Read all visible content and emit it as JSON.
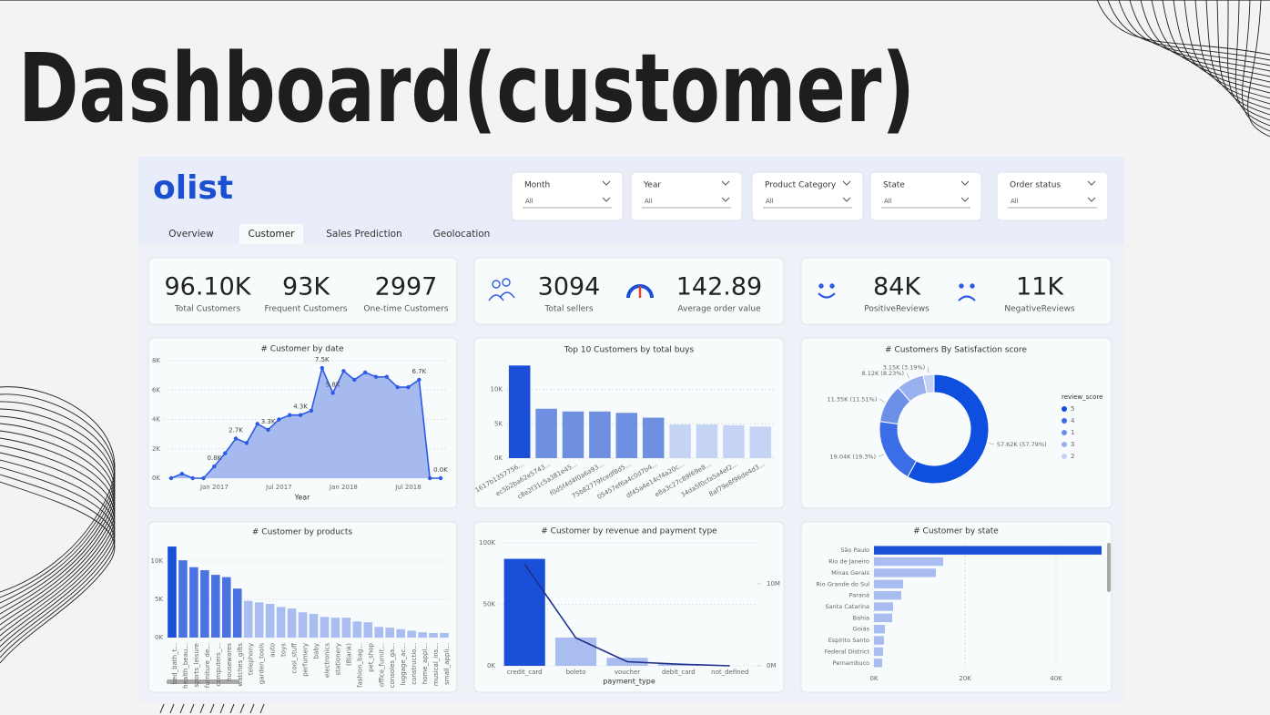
{
  "title": "Dashboard(customer)",
  "logo": "olist",
  "filters": [
    {
      "label": "Month",
      "value": "All"
    },
    {
      "label": "Year",
      "value": "All"
    },
    {
      "label": "Product Category",
      "value": "All"
    },
    {
      "label": "State",
      "value": "All"
    },
    {
      "label": "Order status",
      "value": "All"
    }
  ],
  "tabs": [
    "Overview",
    "Customer",
    "Sales Prediction",
    "Geolocation"
  ],
  "active_tab": 1,
  "kpis": [
    {
      "value": "96.10K",
      "label": "Total Customers"
    },
    {
      "value": "93K",
      "label": "Frequent Customers"
    },
    {
      "value": "2997",
      "label": "One-time Customers"
    },
    {
      "value": "3094",
      "label": "Total sellers"
    },
    {
      "value": "142.89",
      "label": "Average order value"
    },
    {
      "value": "84K",
      "label": "PositiveReviews"
    },
    {
      "value": "11K",
      "label": "NegativeReviews"
    }
  ],
  "chart_data": [
    {
      "type": "area",
      "title": "# Customer by date",
      "x_label": "Year",
      "categories": [
        null,
        null,
        null,
        null,
        "Jan 2017",
        null,
        null,
        null,
        null,
        null,
        "Jul 2017",
        null,
        null,
        null,
        null,
        null,
        "Jan 2018",
        null,
        null,
        null,
        null,
        null,
        "Jul 2018",
        null,
        null,
        null
      ],
      "values": [
        0,
        300,
        0,
        0,
        800,
        1700,
        2700,
        2400,
        3700,
        3300,
        4000,
        4300,
        4300,
        4600,
        7500,
        5800,
        7300,
        6700,
        7200,
        6900,
        6900,
        6200,
        6200,
        6700,
        0,
        0
      ],
      "value_labels": [
        null,
        null,
        null,
        null,
        "0.8K",
        null,
        "2.7K",
        null,
        null,
        "3.3K",
        null,
        null,
        "4.3K",
        null,
        "7.5K",
        "5.8K",
        null,
        null,
        null,
        null,
        null,
        null,
        null,
        "6.7K",
        null,
        "0.0K"
      ],
      "color": "#9db3ee",
      "line_color": "#2d5be3",
      "ylim": [
        0,
        8000
      ],
      "yticks": [
        {
          "value": 0,
          "label": "0K"
        },
        {
          "value": 2000,
          "label": "2K"
        },
        {
          "value": 4000,
          "label": "4K"
        },
        {
          "value": 6000,
          "label": "6K"
        },
        {
          "value": 8000,
          "label": "8K"
        }
      ],
      "grid": true
    },
    {
      "type": "bar",
      "title": "Top 10 Customers by total buys",
      "categories": [
        "1617b1357756...",
        "ec5b2ba62e5743...",
        "c8e2f31c5a381e45...",
        "f0d5f4d4f0a6a93...",
        "75b82779fcedf8d5...",
        "05457ef6a4c0d7b4...",
        "df45a4e14cf4a20c...",
        "e8a3c27c89f69e8...",
        "34da5f0cfa5a4ef2...",
        "8af79e8f96de4d3..."
      ],
      "values": [
        13500,
        7200,
        6800,
        6800,
        6600,
        5900,
        4900,
        4900,
        4800,
        4600
      ],
      "colors": [
        "#1a4fd8",
        "#6f8fe0",
        "#6f8fe0",
        "#6f8fe0",
        "#6f8fe0",
        "#6f8fe0",
        "#c5d3f5",
        "#c5d3f5",
        "#c5d3f5",
        "#c5d3f5"
      ],
      "ylim": [
        0,
        15000
      ],
      "yticks": [
        {
          "value": 0,
          "label": "0K"
        },
        {
          "value": 5000,
          "label": "5K"
        },
        {
          "value": 10000,
          "label": "10K"
        }
      ],
      "grid": true
    },
    {
      "type": "donut",
      "title": "# Customers By Satisfaction score",
      "legend_title": "review_score",
      "categories": [
        "5",
        "4",
        "1",
        "3",
        "2"
      ],
      "values": [
        57620,
        19040,
        11350,
        8120,
        3150
      ],
      "value_labels": [
        "57.62K (57.79%)",
        "19.04K (19.3%)",
        "11.35K (11.51%)",
        "8.12K (8.23%)",
        "3.15K (3.19%)"
      ],
      "colors": [
        "#0f4fe0",
        "#3a6de6",
        "#6c8fe8",
        "#98b0ee",
        "#c5d1f4"
      ]
    },
    {
      "type": "bar",
      "title": "# Customer by products",
      "categories": [
        "bed_bath_t...",
        "health_beau...",
        "sports_leisure",
        "furniture_de...",
        "computers_...",
        "housewares",
        "watches_gifts",
        "telephony",
        "garden_tools",
        "auto",
        "toys",
        "cool_stuff",
        "perfumery",
        "baby",
        "electronics",
        "stationery",
        "(Blank)",
        "fashion_bag...",
        "pet_shop",
        "office_furnit...",
        "consoles_ga...",
        "luggage_ac...",
        "constructio...",
        "home_appl...",
        "musical_ins...",
        "small_appli..."
      ],
      "values": [
        11900,
        10100,
        9200,
        8800,
        8200,
        7900,
        6400,
        4800,
        4600,
        4400,
        4000,
        3800,
        3300,
        3100,
        2700,
        2600,
        2600,
        2100,
        2000,
        1400,
        1300,
        1100,
        900,
        700,
        600,
        600
      ],
      "colors": [
        "#1a4fd8",
        "#4a72e0",
        "#4a72e0",
        "#4a72e0",
        "#4a72e0",
        "#4a72e0",
        "#4a72e0",
        "#a9bdf0",
        "#a9bdf0",
        "#a9bdf0",
        "#a9bdf0",
        "#a9bdf0",
        "#a9bdf0",
        "#a9bdf0",
        "#a9bdf0",
        "#a9bdf0",
        "#a9bdf0",
        "#a9bdf0",
        "#a9bdf0",
        "#a9bdf0",
        "#a9bdf0",
        "#a9bdf0",
        "#a9bdf0",
        "#a9bdf0",
        "#a9bdf0",
        "#a9bdf0"
      ],
      "ylim": [
        0,
        12500
      ],
      "yticks": [
        {
          "value": 0,
          "label": "0K"
        },
        {
          "value": 5000,
          "label": "5K"
        },
        {
          "value": 10000,
          "label": "10K"
        }
      ],
      "grid": true
    },
    {
      "type": "bar",
      "title": "# Customer by revenue and payment type",
      "x_label": "payment_type",
      "categories": [
        "credit_card",
        "boleto",
        "voucher",
        "debit_card",
        "not_defined"
      ],
      "series": [
        {
          "color": "#1a4fd8",
          "colors": [
            "#1a4fd8",
            "#a9bdf0",
            "#a9bdf0",
            "#a9bdf0",
            "#a9bdf0"
          ],
          "values": [
            87000,
            23000,
            6500,
            1500,
            0
          ]
        },
        {
          "color": "#1f2f8a",
          "values": [
            12400000,
            3400000,
            500000,
            200000,
            0
          ],
          "axis": "y2"
        }
      ],
      "ylim": [
        0,
        100000
      ],
      "yticks": [
        {
          "value": 0,
          "label": "0K"
        },
        {
          "value": 50000,
          "label": "50K"
        },
        {
          "value": 100000,
          "label": "100K"
        }
      ],
      "y2lim": [
        0,
        15000000
      ],
      "y2ticks": [
        {
          "value": 0,
          "label": "0M"
        },
        {
          "value": 10000000,
          "label": "10M"
        }
      ],
      "grid": true
    },
    {
      "type": "hbar",
      "title": "# Customer by state",
      "categories": [
        "São Paulo",
        "Rio de Janeiro",
        "Minas Gerais",
        "Rio Grande do Sul",
        "Paraná",
        "Santa Catarina",
        "Bahia",
        "Goiás",
        "Espírito Santo",
        "Federal District",
        "Pernambuco"
      ],
      "values": [
        50000,
        15200,
        13600,
        6400,
        6000,
        4200,
        4000,
        2400,
        2200,
        2000,
        1800
      ],
      "colors": [
        "#1a4fd8",
        "#a9bdf0",
        "#a9bdf0",
        "#a9bdf0",
        "#a9bdf0",
        "#a9bdf0",
        "#a9bdf0",
        "#a9bdf0",
        "#a9bdf0",
        "#a9bdf0",
        "#a9bdf0"
      ],
      "xlim": [
        0,
        50400
      ],
      "xticks": [
        {
          "value": 0,
          "label": "0K"
        },
        {
          "value": 20000,
          "label": "20K"
        },
        {
          "value": 40000,
          "label": "40K"
        }
      ],
      "grid": true
    }
  ]
}
